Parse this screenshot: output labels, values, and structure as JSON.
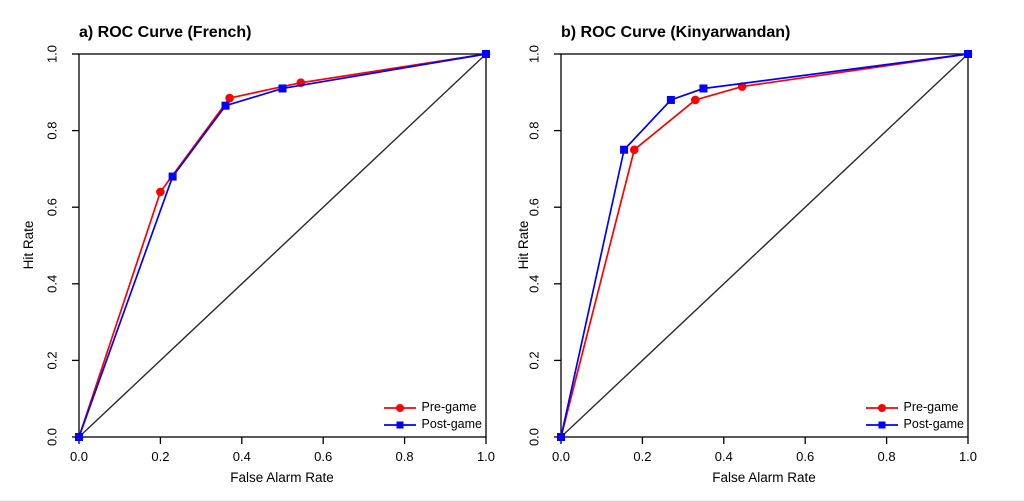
{
  "figure": {
    "background": "#ffffff",
    "axis_color": "#000000",
    "text_color": "#000000",
    "reference_line_color": "#2b2b2b"
  },
  "chart_data": [
    {
      "id": "french",
      "type": "line",
      "title": "a) ROC Curve (French)",
      "xlabel": "False Alarm Rate",
      "ylabel": "Hit Rate",
      "xlim": [
        0.0,
        1.0
      ],
      "ylim": [
        0.0,
        1.0
      ],
      "xticks": [
        0.0,
        0.2,
        0.4,
        0.6,
        0.8,
        1.0
      ],
      "yticks": [
        0.0,
        0.2,
        0.4,
        0.6,
        0.8,
        1.0
      ],
      "grid": false,
      "diagonal_reference": true,
      "legend_position": "bottom-right",
      "series": [
        {
          "name": "Pre-game",
          "color": "#ff0000",
          "marker": "circle",
          "x": [
            0.0,
            0.2,
            0.37,
            0.545,
            1.0
          ],
          "y": [
            0.0,
            0.64,
            0.885,
            0.925,
            1.0
          ]
        },
        {
          "name": "Post-game",
          "color": "#0000ff",
          "marker": "square",
          "x": [
            0.0,
            0.23,
            0.36,
            0.5,
            1.0
          ],
          "y": [
            0.0,
            0.68,
            0.865,
            0.91,
            1.0
          ]
        }
      ]
    },
    {
      "id": "kinyarwandan",
      "type": "line",
      "title": "b) ROC Curve (Kinyarwandan)",
      "xlabel": "False Alarm Rate",
      "ylabel": "Hit Rate",
      "xlim": [
        0.0,
        1.0
      ],
      "ylim": [
        0.0,
        1.0
      ],
      "xticks": [
        0.0,
        0.2,
        0.4,
        0.6,
        0.8,
        1.0
      ],
      "yticks": [
        0.0,
        0.2,
        0.4,
        0.6,
        0.8,
        1.0
      ],
      "grid": false,
      "diagonal_reference": true,
      "legend_position": "bottom-right",
      "series": [
        {
          "name": "Pre-game",
          "color": "#ff0000",
          "marker": "circle",
          "x": [
            0.0,
            0.18,
            0.33,
            0.445,
            1.0
          ],
          "y": [
            0.0,
            0.75,
            0.88,
            0.915,
            1.0
          ]
        },
        {
          "name": "Post-game",
          "color": "#0000ff",
          "marker": "square",
          "x": [
            0.0,
            0.155,
            0.27,
            0.35,
            1.0
          ],
          "y": [
            0.0,
            0.75,
            0.88,
            0.91,
            1.0
          ]
        }
      ]
    }
  ]
}
